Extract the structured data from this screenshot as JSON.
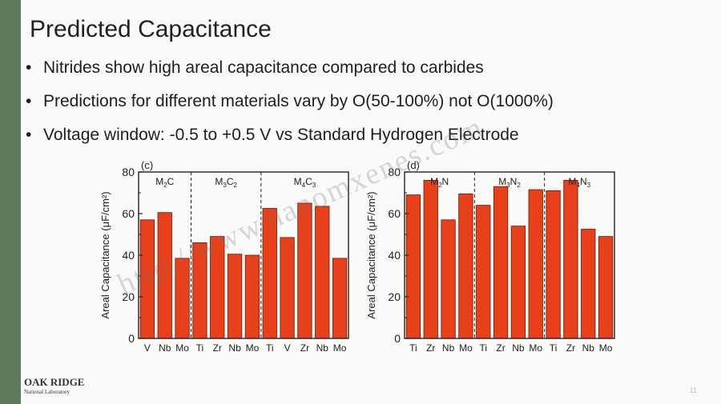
{
  "slide": {
    "title": "Predicted Capacitance",
    "bullets": [
      "Nitrides show high areal capacitance compared to carbides",
      "Predictions for different materials vary by O(50-100%) not O(1000%)",
      "Voltage window: -0.5 to +0.5 V vs Standard Hydrogen Electrode"
    ],
    "bullet_glyph": "•",
    "watermark": "http://www.nanomxenes.com",
    "logo": {
      "main": "OAK RIDGE",
      "sub": "National Laboratory"
    },
    "page_number": "11"
  },
  "colors": {
    "bar": "#e8401a",
    "bar_stroke": "#6b1a08",
    "accent_bar": "#5f7a5c"
  },
  "chart_data": [
    {
      "type": "bar",
      "panel_label": "(c)",
      "ylabel": "Areal Capacitance (μF/cm²)",
      "ylim": [
        0,
        80
      ],
      "yticks": [
        0,
        20,
        40,
        60,
        80
      ],
      "groups": [
        {
          "label_base": "M",
          "sub1": "2",
          "mid": "C",
          "sub2": ""
        },
        {
          "label_base": "M",
          "sub1": "3",
          "mid": "C",
          "sub2": "2"
        },
        {
          "label_base": "M",
          "sub1": "4",
          "mid": "C",
          "sub2": "3"
        }
      ],
      "categories": [
        "V",
        "Nb",
        "Mo",
        "Ti",
        "Zr",
        "Nb",
        "Mo",
        "Ti",
        "V",
        "Zr",
        "Nb",
        "Mo"
      ],
      "group_of": [
        0,
        0,
        0,
        1,
        1,
        1,
        1,
        2,
        2,
        2,
        2,
        2
      ],
      "values": [
        57,
        60.5,
        38.5,
        46,
        49,
        40.5,
        40,
        62.5,
        48.5,
        65,
        63.5,
        38.5
      ]
    },
    {
      "type": "bar",
      "panel_label": "(d)",
      "ylabel": "Areal Capacitance (μF/cm²)",
      "ylim": [
        0,
        80
      ],
      "yticks": [
        0,
        20,
        40,
        60,
        80
      ],
      "groups": [
        {
          "label_base": "M",
          "sub1": "2",
          "mid": "N",
          "sub2": ""
        },
        {
          "label_base": "M",
          "sub1": "3",
          "mid": "N",
          "sub2": "2"
        },
        {
          "label_base": "M",
          "sub1": "4",
          "mid": "N",
          "sub2": "3"
        }
      ],
      "categories": [
        "Ti",
        "Zr",
        "Nb",
        "Mo",
        "Ti",
        "Zr",
        "Nb",
        "Mo",
        "Ti",
        "Zr",
        "Nb",
        "Mo"
      ],
      "group_of": [
        0,
        0,
        0,
        0,
        1,
        1,
        1,
        1,
        2,
        2,
        2,
        2
      ],
      "values": [
        69,
        76,
        57,
        69.5,
        64,
        73,
        54,
        71.5,
        71,
        76,
        52.5,
        49
      ]
    }
  ]
}
